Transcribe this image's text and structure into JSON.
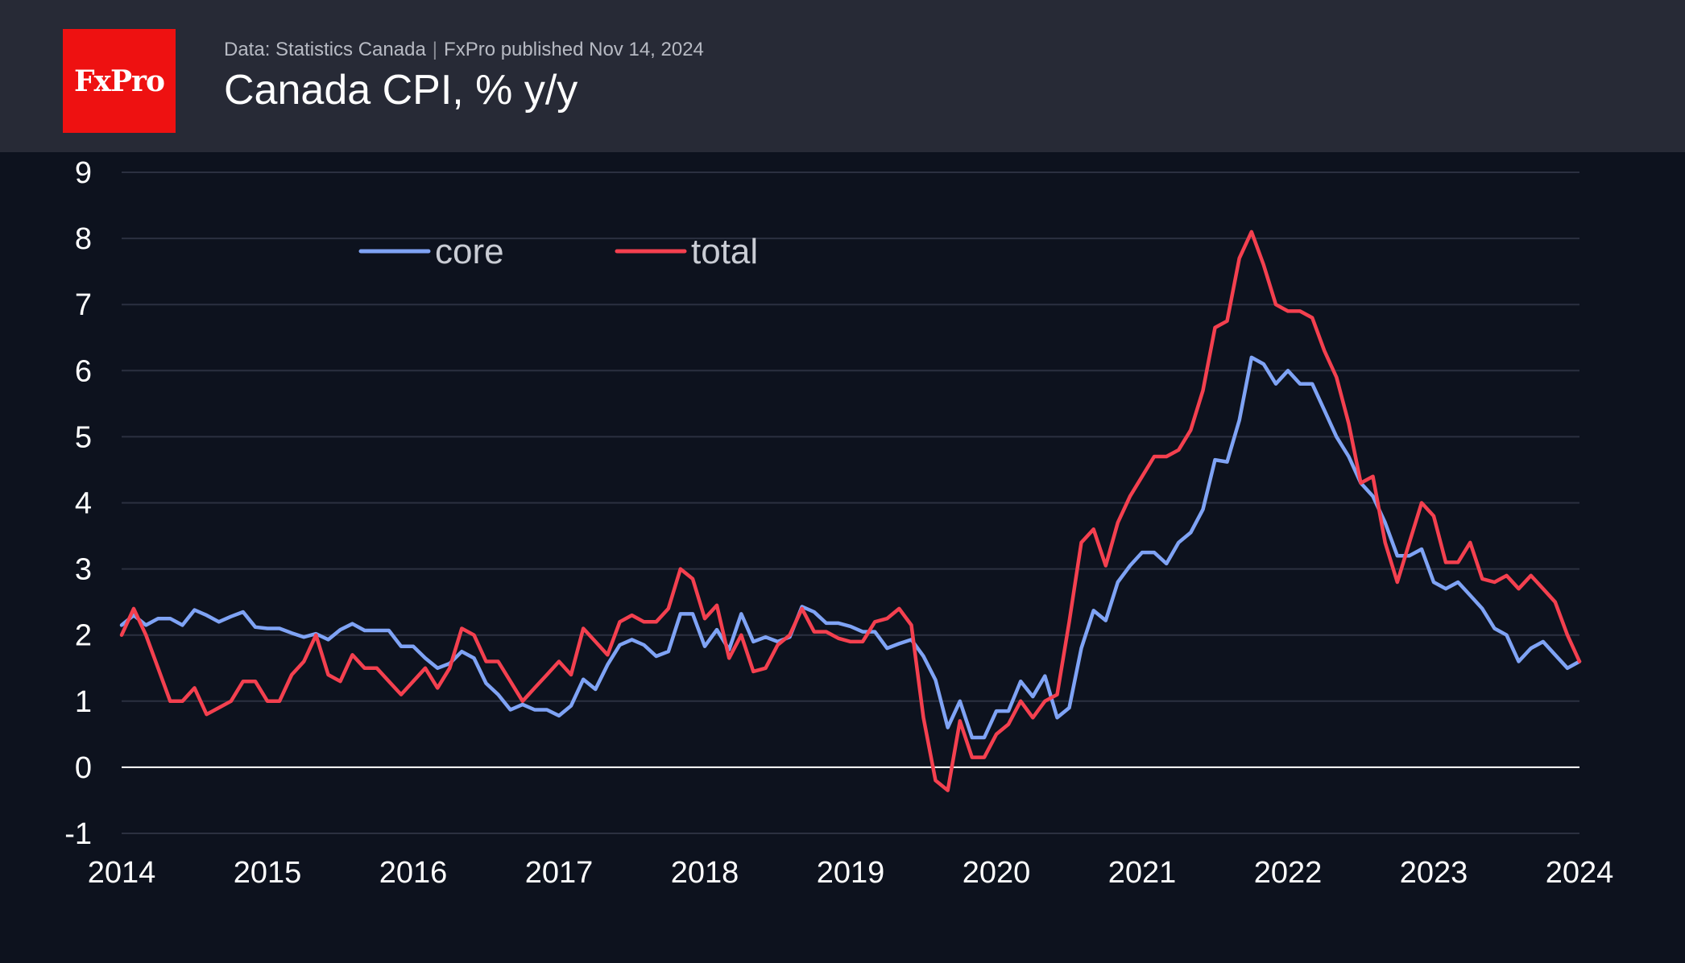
{
  "header": {
    "logo_text": "FxPro",
    "source": "Data: Statistics Canada",
    "separator": "|",
    "published": "FxPro published Nov 14, 2024",
    "title": "Canada CPI, % y/y"
  },
  "colors": {
    "background": "#0d121e",
    "header": "#272a36",
    "logo": "#ee1111",
    "core": "#7fa3f5",
    "total": "#f4404f",
    "grid": "#2b3040",
    "zero_line": "#ffffff"
  },
  "chart_data": {
    "type": "line",
    "title": "Canada CPI, % y/y",
    "xlabel": "",
    "ylabel": "",
    "xlim": [
      2014,
      2024
    ],
    "ylim": [
      -1,
      9
    ],
    "x_ticks": [
      "2014",
      "2015",
      "2016",
      "2017",
      "2018",
      "2019",
      "2020",
      "2021",
      "2022",
      "2023",
      "2024"
    ],
    "y_ticks": [
      "-1",
      "0",
      "1",
      "2",
      "3",
      "4",
      "5",
      "6",
      "7",
      "8",
      "9"
    ],
    "grid": true,
    "legend_position": "top-left",
    "x_unit": "year, monthly observations",
    "series": [
      {
        "name": "core",
        "color": "#7fa3f5",
        "x": [
          2014.0,
          2014.083,
          2014.167,
          2014.25,
          2014.333,
          2014.417,
          2014.5,
          2014.583,
          2014.667,
          2014.75,
          2014.833,
          2014.917,
          2015.0,
          2015.083,
          2015.167,
          2015.25,
          2015.333,
          2015.417,
          2015.5,
          2015.583,
          2015.667,
          2015.75,
          2015.833,
          2015.917,
          2016.0,
          2016.083,
          2016.167,
          2016.25,
          2016.333,
          2016.417,
          2016.5,
          2016.583,
          2016.667,
          2016.75,
          2016.833,
          2016.917,
          2017.0,
          2017.083,
          2017.167,
          2017.25,
          2017.333,
          2017.417,
          2017.5,
          2017.583,
          2017.667,
          2017.75,
          2017.833,
          2017.917,
          2018.0,
          2018.083,
          2018.167,
          2018.25,
          2018.333,
          2018.417,
          2018.5,
          2018.583,
          2018.667,
          2018.75,
          2018.833,
          2018.917,
          2019.0,
          2019.083,
          2019.167,
          2019.25,
          2019.333,
          2019.417,
          2019.5,
          2019.583,
          2019.667,
          2019.75,
          2019.833,
          2019.917,
          2020.0,
          2020.083,
          2020.167,
          2020.25,
          2020.333,
          2020.417,
          2020.5,
          2020.583,
          2020.667,
          2020.75,
          2020.833,
          2020.917,
          2021.0,
          2021.083,
          2021.167,
          2021.25,
          2021.333,
          2021.417,
          2021.5,
          2021.583,
          2021.667,
          2021.75,
          2021.833,
          2021.917,
          2022.0,
          2022.083,
          2022.167,
          2022.25,
          2022.333,
          2022.417,
          2022.5,
          2022.583,
          2022.667,
          2022.75,
          2022.833,
          2022.917,
          2023.0,
          2023.083,
          2023.167,
          2023.25,
          2023.333,
          2023.417,
          2023.5,
          2023.583,
          2023.667,
          2023.75,
          2023.833,
          2023.917,
          2024.0
        ],
        "values": [
          2.15,
          2.3,
          2.15,
          2.25,
          2.25,
          2.15,
          2.38,
          2.3,
          2.2,
          2.28,
          2.35,
          2.12,
          2.1,
          2.1,
          2.03,
          1.97,
          2.02,
          1.93,
          2.08,
          2.17,
          2.07,
          2.07,
          2.07,
          1.83,
          1.83,
          1.65,
          1.5,
          1.57,
          1.75,
          1.65,
          1.27,
          1.1,
          0.87,
          0.95,
          0.87,
          0.87,
          0.78,
          0.93,
          1.33,
          1.18,
          1.55,
          1.85,
          1.93,
          1.85,
          1.68,
          1.75,
          2.32,
          2.32,
          1.83,
          2.08,
          1.78,
          2.32,
          1.9,
          1.97,
          1.9,
          1.97,
          2.43,
          2.35,
          2.18,
          2.18,
          2.13,
          2.05,
          2.05,
          1.8,
          1.87,
          1.93,
          1.68,
          1.32,
          0.6,
          1.0,
          0.45,
          0.45,
          0.85,
          0.85,
          1.3,
          1.07,
          1.38,
          0.75,
          0.9,
          1.8,
          2.37,
          2.22,
          2.8,
          3.05,
          3.25,
          3.25,
          3.08,
          3.4,
          3.55,
          3.9,
          4.65,
          4.62,
          5.25,
          6.2,
          6.1,
          5.8,
          6.0,
          5.8,
          5.8,
          5.4,
          5.0,
          4.7,
          4.3,
          4.1,
          3.7,
          3.2,
          3.2,
          3.3,
          2.8,
          2.7,
          2.8,
          2.6,
          2.4,
          2.1,
          2.0,
          1.6,
          1.8,
          1.9,
          1.7,
          1.5,
          1.6
        ]
      },
      {
        "name": "total",
        "color": "#f4404f",
        "x": [
          2014.0,
          2014.083,
          2014.167,
          2014.25,
          2014.333,
          2014.417,
          2014.5,
          2014.583,
          2014.667,
          2014.75,
          2014.833,
          2014.917,
          2015.0,
          2015.083,
          2015.167,
          2015.25,
          2015.333,
          2015.417,
          2015.5,
          2015.583,
          2015.667,
          2015.75,
          2015.833,
          2015.917,
          2016.0,
          2016.083,
          2016.167,
          2016.25,
          2016.333,
          2016.417,
          2016.5,
          2016.583,
          2016.667,
          2016.75,
          2016.833,
          2016.917,
          2017.0,
          2017.083,
          2017.167,
          2017.25,
          2017.333,
          2017.417,
          2017.5,
          2017.583,
          2017.667,
          2017.75,
          2017.833,
          2017.917,
          2018.0,
          2018.083,
          2018.167,
          2018.25,
          2018.333,
          2018.417,
          2018.5,
          2018.583,
          2018.667,
          2018.75,
          2018.833,
          2018.917,
          2019.0,
          2019.083,
          2019.167,
          2019.25,
          2019.333,
          2019.417,
          2019.5,
          2019.583,
          2019.667,
          2019.75,
          2019.833,
          2019.917,
          2020.0,
          2020.083,
          2020.167,
          2020.25,
          2020.333,
          2020.417,
          2020.5,
          2020.583,
          2020.667,
          2020.75,
          2020.833,
          2020.917,
          2021.0,
          2021.083,
          2021.167,
          2021.25,
          2021.333,
          2021.417,
          2021.5,
          2021.583,
          2021.667,
          2021.75,
          2021.833,
          2021.917,
          2022.0,
          2022.083,
          2022.167,
          2022.25,
          2022.333,
          2022.417,
          2022.5,
          2022.583,
          2022.667,
          2022.75,
          2022.833,
          2022.917,
          2023.0,
          2023.083,
          2023.167,
          2023.25,
          2023.333,
          2023.417,
          2023.5,
          2023.583,
          2023.667,
          2023.75,
          2023.833,
          2023.917,
          2024.0
        ],
        "values": [
          2.0,
          2.4,
          2.0,
          1.5,
          1.0,
          1.0,
          1.2,
          0.8,
          0.9,
          1.0,
          1.3,
          1.3,
          1.0,
          1.0,
          1.4,
          1.6,
          2.0,
          1.4,
          1.3,
          1.7,
          1.5,
          1.5,
          1.3,
          1.1,
          1.3,
          1.5,
          1.2,
          1.5,
          2.1,
          2.0,
          1.6,
          1.6,
          1.3,
          1.0,
          1.2,
          1.4,
          1.6,
          1.4,
          2.1,
          1.9,
          1.7,
          2.2,
          2.3,
          2.2,
          2.2,
          2.4,
          3.0,
          2.85,
          2.25,
          2.45,
          1.65,
          2.0,
          1.45,
          1.5,
          1.85,
          2.0,
          2.4,
          2.05,
          2.05,
          1.95,
          1.9,
          1.9,
          2.2,
          2.25,
          2.4,
          2.15,
          0.75,
          -0.2,
          -0.35,
          0.7,
          0.15,
          0.15,
          0.5,
          0.65,
          1.0,
          0.75,
          1.0,
          1.1,
          2.2,
          3.4,
          3.6,
          3.05,
          3.7,
          4.1,
          4.4,
          4.7,
          4.7,
          4.8,
          5.1,
          5.7,
          6.65,
          6.75,
          7.7,
          8.1,
          7.6,
          7.0,
          6.9,
          6.9,
          6.8,
          6.3,
          5.9,
          5.2,
          4.3,
          4.4,
          3.4,
          2.8,
          3.4,
          4.0,
          3.8,
          3.1,
          3.1,
          3.4,
          2.85,
          2.8,
          2.9,
          2.7,
          2.9,
          2.7,
          2.5,
          2.0,
          1.6
        ]
      }
    ]
  }
}
